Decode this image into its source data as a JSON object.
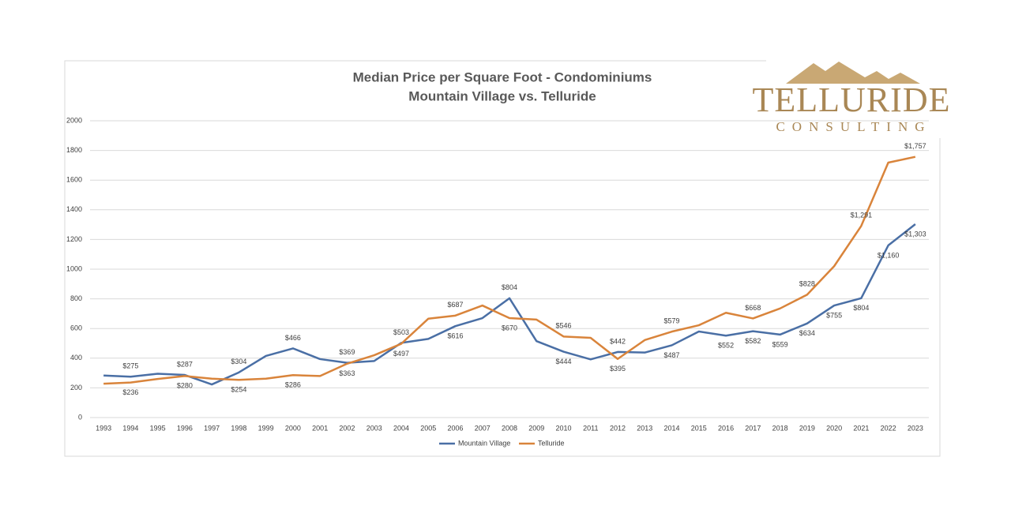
{
  "chart_data": {
    "type": "line",
    "title": "Median Price per Square Foot - Condominiums",
    "subtitle": "Mountain Village vs. Telluride",
    "logo": {
      "name": "TELLURIDE",
      "tagline": "CONSULTING"
    },
    "categories": [
      "1993",
      "1994",
      "1995",
      "1996",
      "1997",
      "1998",
      "1999",
      "2000",
      "2001",
      "2002",
      "2003",
      "2004",
      "2005",
      "2006",
      "2007",
      "2008",
      "2009",
      "2010",
      "2011",
      "2012",
      "2013",
      "2014",
      "2015",
      "2016",
      "2017",
      "2018",
      "2019",
      "2020",
      "2021",
      "2022",
      "2023"
    ],
    "ylim": [
      0,
      2000
    ],
    "yticks": [
      0,
      200,
      400,
      600,
      800,
      1000,
      1200,
      1400,
      1600,
      1800,
      2000
    ],
    "grid": true,
    "legend": "bottom",
    "series": [
      {
        "name": "Mountain Village",
        "color": "#4a6fa5",
        "values": [
          283,
          275,
          295,
          287,
          223,
          304,
          415,
          466,
          394,
          369,
          381,
          503,
          530,
          616,
          670,
          804,
          515,
          444,
          392,
          442,
          438,
          487,
          580,
          552,
          582,
          559,
          634,
          755,
          804,
          1160,
          1303
        ],
        "value_labels": [
          null,
          "$275",
          null,
          "$287",
          null,
          "$304",
          null,
          "$466",
          null,
          "$369",
          null,
          "$503",
          null,
          "$616",
          null,
          "$804",
          null,
          "$444",
          null,
          "$442",
          null,
          "$487",
          null,
          "$552",
          "$582",
          "$559",
          "$634",
          "$755",
          "$804",
          "$1,160",
          "$1,303"
        ]
      },
      {
        "name": "Telluride",
        "color": "#d9843b",
        "values": [
          228,
          236,
          260,
          280,
          262,
          254,
          262,
          286,
          280,
          363,
          420,
          497,
          666,
          687,
          755,
          670,
          660,
          546,
          537,
          395,
          522,
          579,
          622,
          706,
          668,
          735,
          828,
          1020,
          1291,
          1718,
          1757
        ],
        "value_labels": [
          null,
          "$236",
          null,
          "$280",
          null,
          "$254",
          null,
          "$286",
          null,
          "$363",
          null,
          "$497",
          null,
          "$687",
          null,
          "$670",
          null,
          "$546",
          null,
          "$395",
          null,
          "$579",
          null,
          null,
          "$668",
          null,
          "$828",
          null,
          "$1,291",
          null,
          "$1,757"
        ]
      }
    ]
  }
}
